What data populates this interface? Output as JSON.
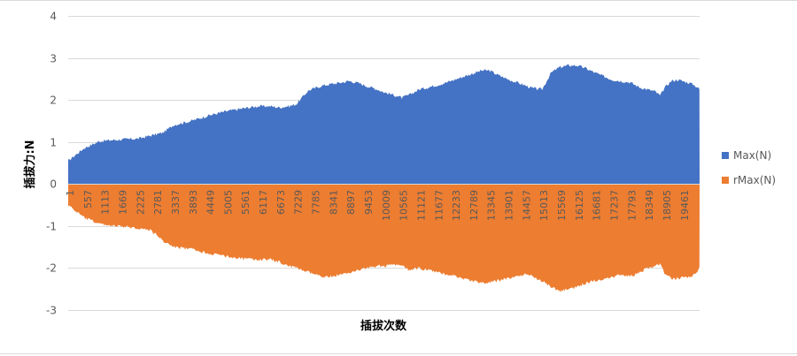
{
  "chart_data": {
    "type": "area",
    "title": "",
    "xlabel": "插拔次数",
    "ylabel": "插拔力:N",
    "ylim": [
      -3,
      4
    ],
    "yticks": [
      4,
      3,
      2,
      1,
      0,
      -1,
      -2,
      -3
    ],
    "x_range": [
      1,
      20000
    ],
    "grid": true,
    "legend_position": "right",
    "x_tick_labels": [
      "1",
      "557",
      "1113",
      "1669",
      "2225",
      "2781",
      "3337",
      "3893",
      "4449",
      "5005",
      "5561",
      "6117",
      "6673",
      "7229",
      "7785",
      "8341",
      "8897",
      "9453",
      "10009",
      "10565",
      "11121",
      "11677",
      "12233",
      "12789",
      "13345",
      "13901",
      "14457",
      "15013",
      "15569",
      "16125",
      "16681",
      "17237",
      "17793",
      "18349",
      "18905",
      "19461"
    ],
    "series": [
      {
        "name": "Max(N)",
        "color": "#4472C4",
        "x": [
          1,
          500,
          1000,
          1500,
          2225,
          2600,
          2781,
          3000,
          3337,
          3893,
          4449,
          5005,
          5561,
          6000,
          6400,
          6673,
          7000,
          7229,
          7600,
          8000,
          8341,
          8700,
          8897,
          9200,
          9453,
          9800,
          10009,
          10400,
          10565,
          10800,
          11121,
          11400,
          11677,
          12000,
          12233,
          12500,
          12789,
          13100,
          13345,
          13600,
          13901,
          14200,
          14457,
          14700,
          15013,
          15300,
          15569,
          15850,
          16125,
          16400,
          16681,
          17000,
          17237,
          17500,
          17793,
          18100,
          18349,
          18600,
          18750,
          18905,
          19100,
          19300,
          19461,
          19700,
          19850,
          20000
        ],
        "values": [
          0.55,
          0.85,
          1.02,
          1.05,
          1.08,
          1.15,
          1.18,
          1.22,
          1.4,
          1.5,
          1.63,
          1.73,
          1.8,
          1.85,
          1.85,
          1.82,
          1.85,
          1.9,
          2.22,
          2.33,
          2.38,
          2.42,
          2.45,
          2.4,
          2.33,
          2.25,
          2.18,
          2.1,
          2.05,
          2.12,
          2.25,
          2.3,
          2.35,
          2.42,
          2.48,
          2.55,
          2.62,
          2.7,
          2.7,
          2.6,
          2.5,
          2.42,
          2.35,
          2.28,
          2.25,
          2.65,
          2.78,
          2.82,
          2.82,
          2.75,
          2.65,
          2.55,
          2.48,
          2.45,
          2.42,
          2.3,
          2.25,
          2.2,
          2.1,
          2.3,
          2.45,
          2.48,
          2.45,
          2.4,
          2.35,
          2.25
        ]
      },
      {
        "name": "rMax(N)",
        "color": "#ED7D31",
        "x": [
          1,
          500,
          1000,
          1500,
          2225,
          2600,
          2781,
          3000,
          3337,
          3893,
          4449,
          5005,
          5561,
          6000,
          6400,
          6673,
          7000,
          7229,
          7600,
          8000,
          8341,
          8700,
          8897,
          9200,
          9453,
          9800,
          10009,
          10400,
          10565,
          10800,
          11121,
          11400,
          11677,
          12000,
          12233,
          12500,
          12789,
          13100,
          13345,
          13600,
          13901,
          14200,
          14457,
          14700,
          15013,
          15300,
          15569,
          15850,
          16125,
          16400,
          16681,
          17000,
          17237,
          17500,
          17793,
          18100,
          18349,
          18600,
          18750,
          18905,
          19100,
          19300,
          19461,
          19700,
          19850,
          20000
        ],
        "values": [
          -0.5,
          -0.8,
          -0.95,
          -1.0,
          -1.05,
          -1.1,
          -1.2,
          -1.35,
          -1.5,
          -1.55,
          -1.65,
          -1.72,
          -1.78,
          -1.8,
          -1.8,
          -1.85,
          -1.95,
          -2.0,
          -2.1,
          -2.2,
          -2.2,
          -2.15,
          -2.1,
          -2.05,
          -2.0,
          -1.95,
          -1.95,
          -1.92,
          -1.95,
          -2.05,
          -2.0,
          -2.05,
          -2.1,
          -2.15,
          -2.18,
          -2.25,
          -2.3,
          -2.35,
          -2.35,
          -2.3,
          -2.25,
          -2.2,
          -2.15,
          -2.2,
          -2.3,
          -2.45,
          -2.55,
          -2.5,
          -2.45,
          -2.35,
          -2.3,
          -2.25,
          -2.2,
          -2.15,
          -2.2,
          -2.1,
          -2.0,
          -1.95,
          -1.9,
          -2.15,
          -2.25,
          -2.25,
          -2.22,
          -2.2,
          -2.15,
          -2.0
        ]
      }
    ]
  }
}
